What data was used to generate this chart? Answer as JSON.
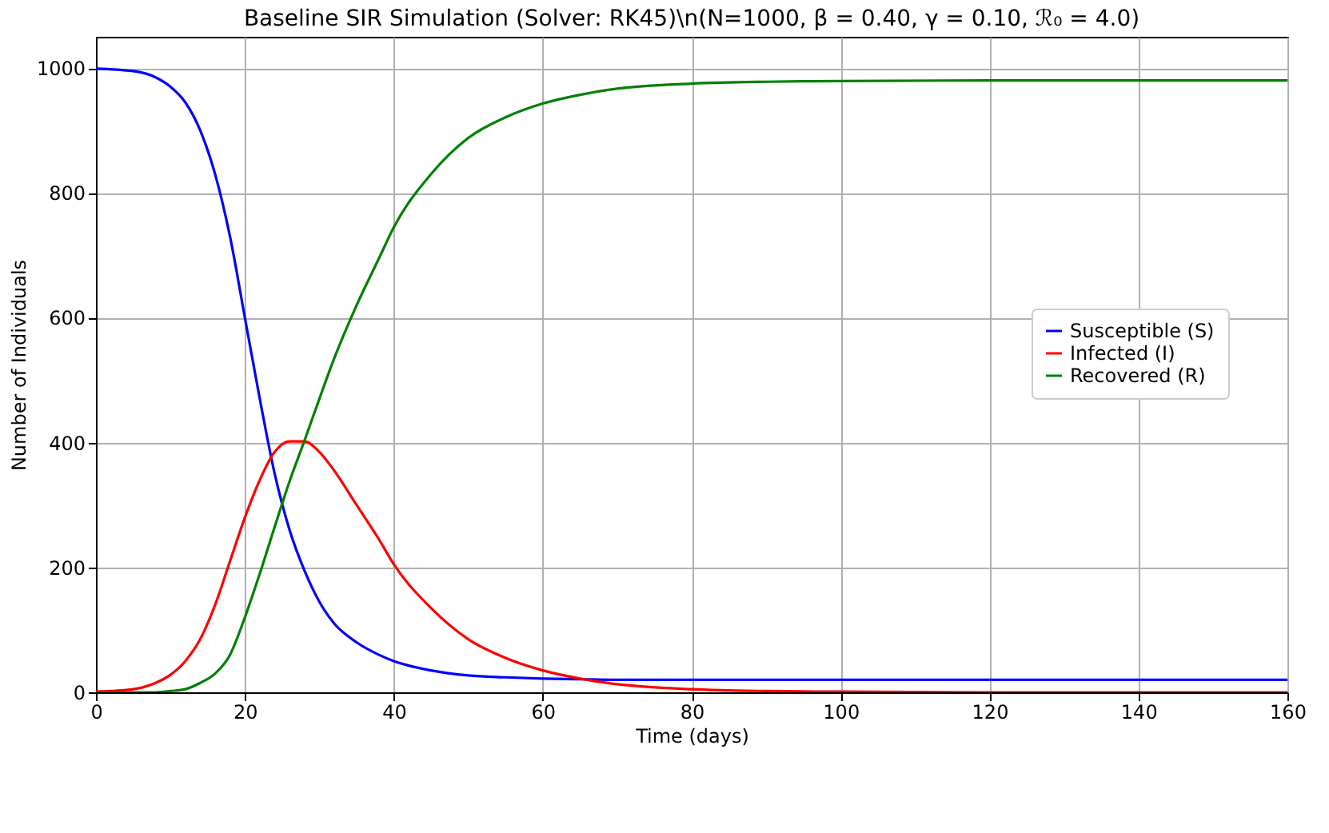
{
  "chart_data": {
    "type": "line",
    "title": "Baseline SIR Simulation (Solver: RK45)\\n(N=1000, β = 0.40, γ = 0.10, ℛ₀ = 4.0)",
    "xlabel": "Time (days)",
    "ylabel": "Number of Individuals",
    "x": [
      0,
      5,
      8,
      10,
      12,
      14,
      16,
      18,
      20,
      22,
      24,
      26,
      28,
      30,
      32,
      35,
      38,
      40,
      45,
      50,
      55,
      60,
      65,
      70,
      80,
      90,
      100,
      120,
      140,
      160
    ],
    "series": [
      {
        "name": "Susceptible (S)",
        "color": "#0000ff",
        "values": [
          999,
          995,
          985,
          970,
          945,
          900,
          830,
          730,
          600,
          470,
          350,
          260,
          195,
          145,
          110,
          80,
          60,
          50,
          35,
          27,
          24,
          22,
          21,
          20,
          20,
          20,
          20,
          20,
          20,
          20
        ]
      },
      {
        "name": "Infected (I)",
        "color": "#ff0000",
        "values": [
          1,
          5,
          15,
          28,
          50,
          85,
          140,
          210,
          280,
          340,
          385,
          402,
          402,
          385,
          355,
          300,
          245,
          205,
          135,
          85,
          55,
          35,
          22,
          13,
          5,
          2,
          1,
          0,
          0,
          0
        ]
      },
      {
        "name": "Recovered (R)",
        "color": "#008000",
        "values": [
          0,
          0,
          0,
          2,
          5,
          15,
          30,
          60,
          120,
          190,
          265,
          338,
          403,
          470,
          535,
          620,
          695,
          745,
          830,
          888,
          921,
          943,
          957,
          967,
          975,
          978,
          979,
          980,
          980,
          980
        ]
      }
    ],
    "xlim": [
      0,
      160
    ],
    "xticks": [
      0,
      20,
      40,
      60,
      80,
      100,
      120,
      140,
      160
    ],
    "ylim": [
      0,
      1050
    ],
    "yticks": [
      0,
      200,
      400,
      600,
      800,
      1000
    ],
    "grid": true,
    "legend": "right",
    "line_style": "solid",
    "marker": "none"
  }
}
